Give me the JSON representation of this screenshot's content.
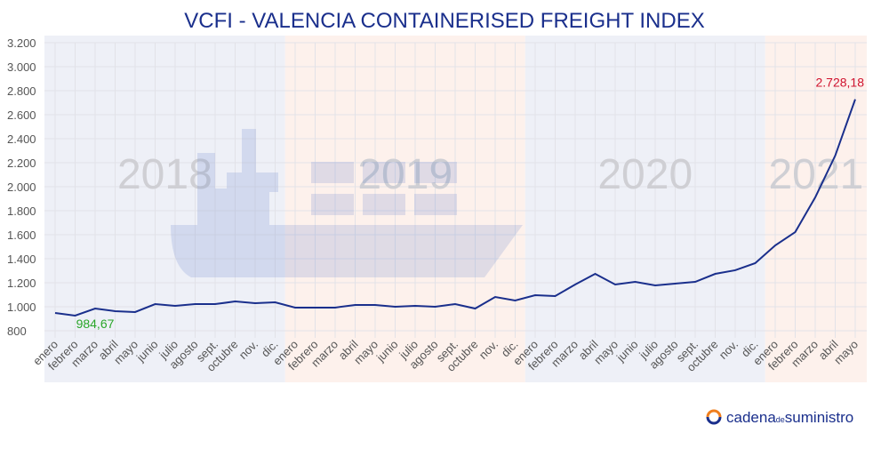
{
  "chart_data": {
    "type": "line",
    "title": "VCFI - VALENCIA CONTAINERISED FREIGHT INDEX",
    "categories": [
      "enero",
      "febrero",
      "marzo",
      "abril",
      "mayo",
      "junio",
      "julio",
      "agosto",
      "sept.",
      "octubre",
      "nov.",
      "dic.",
      "enero",
      "febrero",
      "marzo",
      "abril",
      "mayo",
      "junio",
      "julio",
      "agosto",
      "sept.",
      "octubre",
      "nov.",
      "dic.",
      "enero",
      "febrero",
      "marzo",
      "abril",
      "mayo",
      "junio",
      "julio",
      "agosto",
      "sept.",
      "octubre",
      "nov.",
      "dic.",
      "enero",
      "febrero",
      "marzo",
      "abril",
      "mayo"
    ],
    "year_labels": [
      "2018",
      "2019",
      "2020",
      "2021"
    ],
    "series": [
      {
        "color": "#1a2f8c",
        "values": [
          948,
          926,
          984.67,
          963,
          956,
          1022,
          1007,
          1022,
          1022,
          1044,
          1030,
          1037,
          993,
          993,
          993,
          1015,
          1015,
          1000,
          1007,
          1000,
          1022,
          985,
          1081,
          1052,
          1096,
          1089,
          1185,
          1274,
          1185,
          1207,
          1178,
          1193,
          1207,
          1274,
          1304,
          1363,
          1511,
          1622,
          1911,
          2259,
          2728.18
        ],
        "value_labels": [
          null,
          null,
          "984,67",
          null,
          null,
          null,
          null,
          null,
          null,
          null,
          null,
          null,
          null,
          null,
          null,
          null,
          null,
          null,
          null,
          null,
          null,
          null,
          null,
          null,
          null,
          null,
          null,
          null,
          null,
          null,
          null,
          null,
          null,
          null,
          null,
          null,
          null,
          null,
          null,
          null,
          "2.728,18"
        ],
        "value_label_colors": {
          "min": "#2aa62a",
          "max": "#d0122e"
        }
      }
    ],
    "ylim": [
      800,
      3200
    ],
    "yticks": [
      800,
      {
        "value": 1000,
        "label": "1.000"
      },
      {
        "value": 1200,
        "label": "1.200"
      },
      {
        "value": 1400,
        "label": "1.400"
      },
      {
        "value": 1600,
        "label": "1.600"
      },
      {
        "value": 1800,
        "label": "1.800"
      },
      {
        "value": 2000,
        "label": "2.000"
      },
      {
        "value": 2200,
        "label": "2.200"
      },
      {
        "value": 2400,
        "label": "2.400"
      },
      {
        "value": 2600,
        "label": "2.600"
      },
      {
        "value": 2800,
        "label": "2.800"
      },
      {
        "value": 3000,
        "label": "3.000"
      },
      {
        "value": 3200,
        "label": "3.200"
      }
    ],
    "grid": true,
    "band_colors": [
      "#eef0f7",
      "#fdf1ec"
    ],
    "logo": {
      "name": "cadena",
      "connector": "de",
      "suffix": "suministro"
    }
  }
}
